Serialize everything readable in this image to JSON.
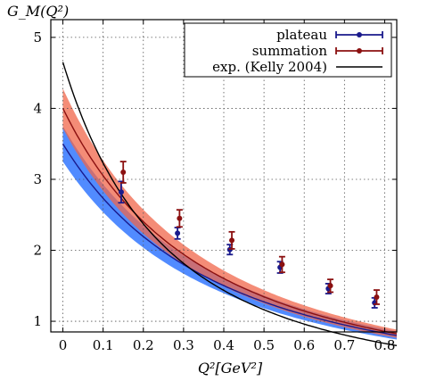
{
  "chart_data": {
    "type": "line",
    "xlabel": "Q²[GeV²]",
    "ylabel": "G_M(Q²)",
    "xlim": [
      -0.03,
      0.83
    ],
    "ylim": [
      0.85,
      5.25
    ],
    "x_ticks": [
      "0",
      "0.1",
      "0.2",
      "0.3",
      "0.4",
      "0.5",
      "0.6",
      "0.7",
      "0.8"
    ],
    "x_tick_values": [
      0,
      0.1,
      0.2,
      0.3,
      0.4,
      0.5,
      0.6,
      0.7,
      0.8
    ],
    "y_ticks": [
      "1",
      "2",
      "3",
      "4",
      "5"
    ],
    "y_tick_values": [
      1,
      2,
      3,
      4,
      5
    ],
    "grid": true,
    "legend_position": "top-right",
    "series": [
      {
        "name": "plateau",
        "kind": "points_with_band",
        "color": "#1a1a8c",
        "band_color": "#3377ff",
        "points": [
          {
            "x": 0.145,
            "y": 2.82,
            "err": 0.15
          },
          {
            "x": 0.285,
            "y": 2.24,
            "err": 0.08
          },
          {
            "x": 0.415,
            "y": 2.01,
            "err": 0.07
          },
          {
            "x": 0.54,
            "y": 1.76,
            "err": 0.08
          },
          {
            "x": 0.66,
            "y": 1.46,
            "err": 0.07
          },
          {
            "x": 0.775,
            "y": 1.26,
            "err": 0.07
          }
        ],
        "fit": {
          "model": "dipole",
          "g0": 3.5,
          "m2": 0.76
        },
        "band": {
          "upper": {
            "g0": 3.75,
            "m2": 0.76
          },
          "lower": {
            "g0": 3.25,
            "m2": 0.76
          }
        }
      },
      {
        "name": "summation",
        "kind": "points_with_band",
        "color": "#8b1010",
        "band_color": "#f0654a",
        "points": [
          {
            "x": 0.15,
            "y": 3.1,
            "err": 0.15
          },
          {
            "x": 0.29,
            "y": 2.45,
            "err": 0.12
          },
          {
            "x": 0.42,
            "y": 2.14,
            "err": 0.12
          },
          {
            "x": 0.545,
            "y": 1.8,
            "err": 0.11
          },
          {
            "x": 0.665,
            "y": 1.5,
            "err": 0.09
          },
          {
            "x": 0.78,
            "y": 1.34,
            "err": 0.1
          }
        ],
        "fit": {
          "model": "dipole",
          "g0": 4.0,
          "m2": 0.69
        },
        "band": {
          "upper": {
            "g0": 4.28,
            "m2": 0.69
          },
          "lower": {
            "g0": 3.72,
            "m2": 0.69
          }
        }
      },
      {
        "name": "exp. (Kelly 2004)",
        "kind": "curve",
        "color": "#000000",
        "fit": {
          "model": "dipole",
          "g0": 4.65,
          "m2": 0.5
        }
      }
    ]
  }
}
